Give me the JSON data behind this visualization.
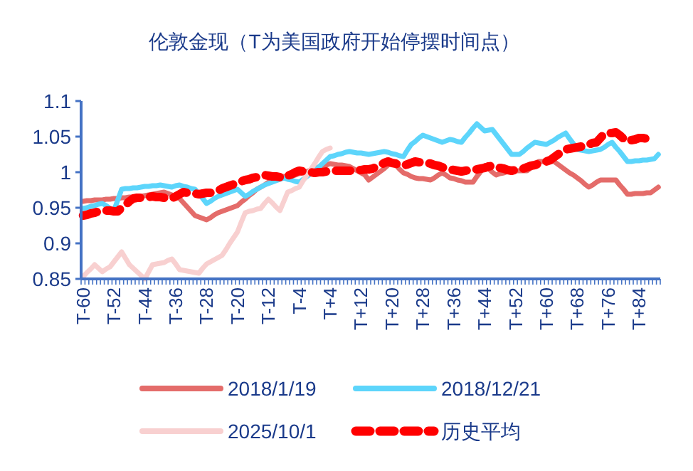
{
  "chart_data": {
    "type": "line",
    "title": "伦敦金现（T为美国政府开始停摆时间点）",
    "categories": [
      "T-60",
      null,
      null,
      null,
      null,
      null,
      null,
      null,
      "T-52",
      null,
      null,
      null,
      null,
      null,
      null,
      null,
      "T-44",
      null,
      null,
      null,
      null,
      null,
      null,
      null,
      "T-36",
      null,
      null,
      null,
      null,
      null,
      null,
      null,
      "T-28",
      null,
      null,
      null,
      null,
      null,
      null,
      null,
      "T-20",
      null,
      null,
      null,
      null,
      null,
      null,
      null,
      "T-12",
      null,
      null,
      null,
      null,
      null,
      null,
      null,
      "T-4",
      null,
      null,
      null,
      null,
      null,
      null,
      null,
      "T+4",
      null,
      null,
      null,
      null,
      null,
      null,
      null,
      "T+12",
      null,
      null,
      null,
      null,
      null,
      null,
      null,
      "T+20",
      null,
      null,
      null,
      null,
      null,
      null,
      null,
      "T+28",
      null,
      null,
      null,
      null,
      null,
      null,
      null,
      "T+36",
      null,
      null,
      null,
      null,
      null,
      null,
      null,
      "T+44",
      null,
      null,
      null,
      null,
      null,
      null,
      null,
      "T+52",
      null,
      null,
      null,
      null,
      null,
      null,
      null,
      "T+60",
      null,
      null,
      null,
      null,
      null,
      null,
      null,
      "T+68",
      null,
      null,
      null,
      null,
      null,
      null,
      null,
      "T+76",
      null,
      null,
      null,
      null,
      null,
      null,
      null,
      "T+84",
      null,
      null,
      null,
      null,
      null
    ],
    "ylim": [
      0.85,
      1.1
    ],
    "yticks": [
      0.85,
      0.9,
      0.95,
      1,
      1.05,
      1.1
    ],
    "grid": false,
    "legend": "bottom",
    "marker": "none",
    "series": [
      {
        "name": "2018/1/19",
        "color": "#e46c6a",
        "line_style": "solid",
        "values": [
          0.959,
          0.96,
          0.96,
          0.961,
          0.961,
          0.961,
          0.962,
          0.962,
          0.963,
          0.963,
          0.964,
          0.964,
          0.965,
          0.965,
          0.966,
          0.966,
          0.967,
          0.968,
          0.969,
          0.97,
          0.971,
          0.972,
          0.97,
          0.968,
          0.965,
          0.963,
          0.957,
          0.951,
          0.945,
          0.939,
          0.937,
          0.935,
          0.933,
          0.936,
          0.94,
          0.943,
          0.945,
          0.947,
          0.949,
          0.951,
          0.953,
          0.958,
          0.962,
          0.967,
          0.971,
          0.976,
          0.979,
          0.982,
          0.986,
          0.989,
          0.992,
          0.993,
          0.994,
          0.994,
          0.995,
          0.996,
          0.998,
          1.0,
          1.001,
          1.003,
          1.005,
          1.007,
          1.008,
          1.01,
          1.012,
          1.011,
          1.01,
          1.01,
          1.009,
          1.008,
          1.005,
          1.002,
          0.999,
          0.996,
          0.989,
          0.993,
          0.997,
          1.001,
          1.005,
          1.01,
          1.015,
          1.01,
          1.004,
          0.999,
          0.997,
          0.994,
          0.992,
          0.991,
          0.991,
          0.99,
          0.989,
          0.992,
          0.996,
          0.999,
          0.996,
          0.992,
          0.991,
          0.989,
          0.988,
          0.986,
          0.986,
          0.986,
          0.994,
          1.001,
          1.009,
          1.005,
          1.0,
          0.996,
          0.998,
          0.999,
          1.001,
          1.002,
          1.002,
          1.002,
          1.002,
          1.002,
          1.006,
          1.011,
          1.015,
          1.015,
          1.015,
          1.015,
          1.015,
          1.011,
          1.007,
          1.003,
          0.999,
          0.996,
          0.992,
          0.988,
          0.983,
          0.979,
          0.982,
          0.986,
          0.989,
          0.989,
          0.989,
          0.989,
          0.989,
          0.982,
          0.976,
          0.969,
          0.969,
          0.97,
          0.97,
          0.97,
          0.971,
          0.971,
          0.975,
          0.979
        ]
      },
      {
        "name": "2018/12/21",
        "color": "#5dd5fb",
        "line_style": "solid",
        "values": [
          0.949,
          0.95,
          0.952,
          0.953,
          0.955,
          0.956,
          0.953,
          0.949,
          0.946,
          0.961,
          0.976,
          0.977,
          0.977,
          0.978,
          0.978,
          0.979,
          0.98,
          0.98,
          0.981,
          0.981,
          0.982,
          0.981,
          0.98,
          0.979,
          0.981,
          0.982,
          0.98,
          0.979,
          0.977,
          0.976,
          0.969,
          0.963,
          0.956,
          0.959,
          0.963,
          0.966,
          0.968,
          0.97,
          0.972,
          0.974,
          0.976,
          0.971,
          0.966,
          0.969,
          0.973,
          0.976,
          0.979,
          0.982,
          0.984,
          0.986,
          0.988,
          0.99,
          0.992,
          0.99,
          0.989,
          0.987,
          0.986,
          0.99,
          0.994,
          0.998,
          1.002,
          1.007,
          1.012,
          1.017,
          1.022,
          1.023,
          1.025,
          1.026,
          1.028,
          1.029,
          1.028,
          1.027,
          1.027,
          1.026,
          1.025,
          1.026,
          1.027,
          1.028,
          1.029,
          1.028,
          1.026,
          1.025,
          1.023,
          1.022,
          1.031,
          1.039,
          1.043,
          1.048,
          1.052,
          1.05,
          1.048,
          1.046,
          1.044,
          1.042,
          1.044,
          1.046,
          1.045,
          1.043,
          1.042,
          1.049,
          1.055,
          1.062,
          1.068,
          1.063,
          1.058,
          1.059,
          1.06,
          1.053,
          1.046,
          1.039,
          1.032,
          1.025,
          1.025,
          1.025,
          1.029,
          1.034,
          1.038,
          1.042,
          1.041,
          1.04,
          1.039,
          1.042,
          1.045,
          1.049,
          1.052,
          1.055,
          1.047,
          1.04,
          1.032,
          1.031,
          1.03,
          1.029,
          1.03,
          1.031,
          1.032,
          1.035,
          1.039,
          1.042,
          1.035,
          1.029,
          1.022,
          1.015,
          1.015,
          1.016,
          1.016,
          1.017,
          1.017,
          1.018,
          1.019,
          1.025
        ]
      },
      {
        "name": "2025/10/1",
        "color": "#f8d0d0",
        "line_style": "solid",
        "values": [
          0.853,
          0.859,
          0.864,
          0.87,
          0.865,
          0.86,
          0.864,
          0.867,
          0.874,
          0.881,
          0.888,
          0.879,
          0.87,
          0.865,
          0.86,
          0.855,
          0.85,
          0.86,
          0.87,
          0.871,
          0.872,
          0.873,
          0.876,
          0.878,
          0.871,
          0.863,
          0.862,
          0.861,
          0.86,
          0.859,
          0.858,
          0.865,
          0.871,
          0.874,
          0.877,
          0.88,
          0.883,
          0.891,
          0.9,
          0.908,
          0.916,
          0.93,
          0.943,
          0.945,
          0.946,
          0.948,
          0.949,
          0.956,
          0.962,
          0.957,
          0.951,
          0.946,
          0.959,
          0.972,
          0.974,
          0.977,
          0.979,
          0.988,
          0.996,
          1.004,
          1.012,
          1.021,
          1.029,
          1.032,
          1.034,
          null,
          null,
          null,
          null,
          null,
          null,
          null,
          null,
          null,
          null,
          null,
          null,
          null,
          null,
          null,
          null,
          null,
          null,
          null,
          null,
          null,
          null,
          null,
          null,
          null,
          null,
          null,
          null,
          null,
          null,
          null,
          null,
          null,
          null,
          null,
          null,
          null,
          null,
          null,
          null,
          null,
          null,
          null,
          null,
          null,
          null,
          null,
          null,
          null,
          null,
          null,
          null,
          null,
          null,
          null,
          null,
          null,
          null,
          null,
          null,
          null,
          null,
          null,
          null,
          null,
          null,
          null,
          null,
          null,
          null,
          null,
          null,
          null,
          null,
          null,
          null,
          null,
          null,
          null,
          null,
          null,
          null,
          null,
          null,
          null
        ]
      },
      {
        "name": "历史平均",
        "color": "#ff0000",
        "line_style": "dashed",
        "values": [
          0.939,
          0.94,
          0.942,
          0.943,
          0.945,
          0.946,
          0.946,
          0.946,
          0.945,
          0.945,
          0.95,
          0.954,
          0.959,
          0.963,
          0.964,
          0.964,
          0.965,
          0.965,
          0.966,
          0.965,
          0.965,
          0.964,
          0.964,
          0.963,
          0.966,
          0.969,
          0.972,
          0.971,
          0.971,
          0.97,
          0.969,
          0.97,
          0.971,
          0.971,
          0.972,
          0.974,
          0.977,
          0.979,
          0.981,
          0.983,
          0.985,
          0.987,
          0.989,
          0.99,
          0.992,
          0.993,
          0.995,
          0.996,
          0.995,
          0.994,
          0.994,
          0.993,
          0.992,
          0.995,
          0.997,
          1.0,
          1.002,
          1.001,
          1.001,
          1.0,
          0.999,
          1.0,
          1.0,
          1.001,
          1.002,
          1.002,
          1.002,
          1.002,
          1.002,
          1.002,
          1.002,
          1.003,
          1.003,
          1.004,
          1.004,
          1.005,
          1.008,
          1.01,
          1.013,
          1.015,
          1.013,
          1.012,
          1.01,
          1.009,
          1.011,
          1.013,
          1.015,
          1.014,
          1.014,
          1.013,
          1.012,
          1.01,
          1.009,
          1.007,
          1.005,
          1.004,
          1.003,
          1.002,
          1.001,
          1.002,
          1.003,
          1.003,
          1.004,
          1.005,
          1.006,
          1.008,
          1.009,
          1.008,
          1.006,
          1.005,
          1.003,
          1.002,
          1.003,
          1.004,
          1.005,
          1.007,
          1.009,
          1.01,
          1.012,
          1.014,
          1.015,
          1.017,
          1.021,
          1.025,
          1.028,
          1.032,
          1.033,
          1.034,
          1.035,
          1.036,
          1.038,
          1.039,
          1.041,
          1.042,
          1.048,
          1.054,
          1.055,
          1.055,
          1.056,
          1.052,
          1.047,
          1.043,
          1.045,
          1.046,
          1.048,
          1.048,
          1.047,
          1.047,
          null,
          null
        ]
      }
    ]
  }
}
